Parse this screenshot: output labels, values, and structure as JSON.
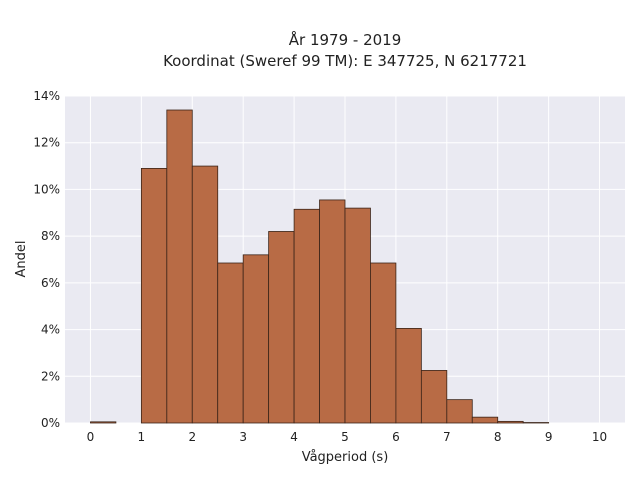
{
  "chart_data": {
    "type": "bar",
    "title_lines": [
      "År 1979 - 2019",
      "Koordinat (Sweref 99 TM): E 347725, N 6217721"
    ],
    "xlabel": "Vågperiod (s)",
    "ylabel": "Andel",
    "xlim": [
      -0.5,
      10.5
    ],
    "ylim": [
      0,
      14
    ],
    "x_ticks": [
      0,
      1,
      2,
      3,
      4,
      5,
      6,
      7,
      8,
      9,
      10
    ],
    "y_ticks": [
      0,
      2,
      4,
      6,
      8,
      10,
      12,
      14
    ],
    "y_tick_labels": [
      "0%",
      "2%",
      "4%",
      "6%",
      "8%",
      "10%",
      "12%",
      "14%"
    ],
    "bin_width": 0.5,
    "bins": [
      {
        "start": 0.0,
        "value": 0.05
      },
      {
        "start": 1.0,
        "value": 10.9
      },
      {
        "start": 1.5,
        "value": 13.4
      },
      {
        "start": 2.0,
        "value": 11.0
      },
      {
        "start": 2.5,
        "value": 6.85
      },
      {
        "start": 3.0,
        "value": 7.2
      },
      {
        "start": 3.5,
        "value": 8.2
      },
      {
        "start": 4.0,
        "value": 9.15
      },
      {
        "start": 4.5,
        "value": 9.55
      },
      {
        "start": 5.0,
        "value": 9.2
      },
      {
        "start": 5.5,
        "value": 6.85
      },
      {
        "start": 6.0,
        "value": 4.05
      },
      {
        "start": 6.5,
        "value": 2.25
      },
      {
        "start": 7.0,
        "value": 1.0
      },
      {
        "start": 7.5,
        "value": 0.25
      },
      {
        "start": 8.0,
        "value": 0.07
      },
      {
        "start": 8.5,
        "value": 0.02
      }
    ],
    "grid": true,
    "colors": {
      "bar_fill": "#b86b45",
      "bar_edge": "#3b2418",
      "plot_background": "#eaeaf2",
      "grid": "#ffffff"
    }
  }
}
